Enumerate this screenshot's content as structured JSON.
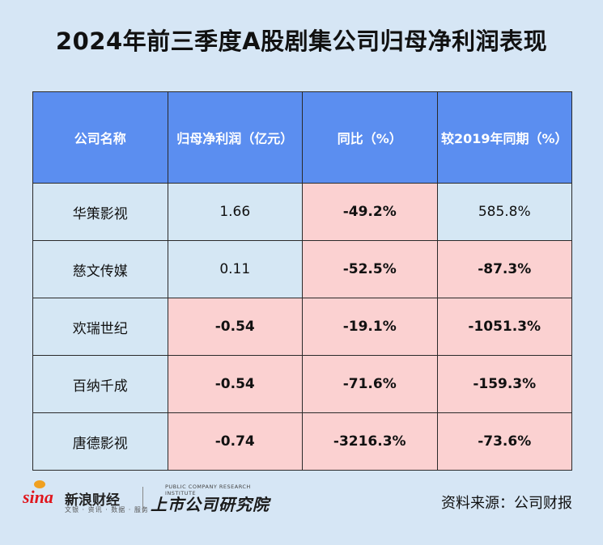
{
  "title": "2024年前三季度A股剧集公司归母净利润表现",
  "table": {
    "headers": [
      "公司名称",
      "归母净利润（亿元）",
      "同比（%）",
      "较2019年同期（%）"
    ],
    "rows": [
      {
        "name": "华策影视",
        "profit": "1.66",
        "yoy": "-49.2%",
        "vs2019": "585.8%"
      },
      {
        "name": "慈文传媒",
        "profit": "0.11",
        "yoy": "-52.5%",
        "vs2019": "-87.3%"
      },
      {
        "name": "欢瑞世纪",
        "profit": "-0.54",
        "yoy": "-19.1%",
        "vs2019": "-1051.3%"
      },
      {
        "name": "百纳千成",
        "profit": "-0.54",
        "yoy": "-71.6%",
        "vs2019": "-159.3%"
      },
      {
        "name": "唐德影视",
        "profit": "-0.74",
        "yoy": "-3216.3%",
        "vs2019": "-73.6%"
      }
    ]
  },
  "footer": {
    "sina_logo": "sina",
    "sina_name": "新浪财经",
    "sina_tagline": "文银 · 资讯 · 数据 · 服务",
    "lisi_tagline": "PUBLIC COMPANY RESEARCH INSTITUTE",
    "lisi_name": "上市公司研究院",
    "source": "资料来源：公司财报"
  },
  "colors": {
    "background": "#d6e6f5",
    "header_bg": "#5b8ef0",
    "neutral_cell": "#d5e7f4",
    "negative_cell": "#fbd1d1",
    "negative_text": "#e02a2a"
  }
}
